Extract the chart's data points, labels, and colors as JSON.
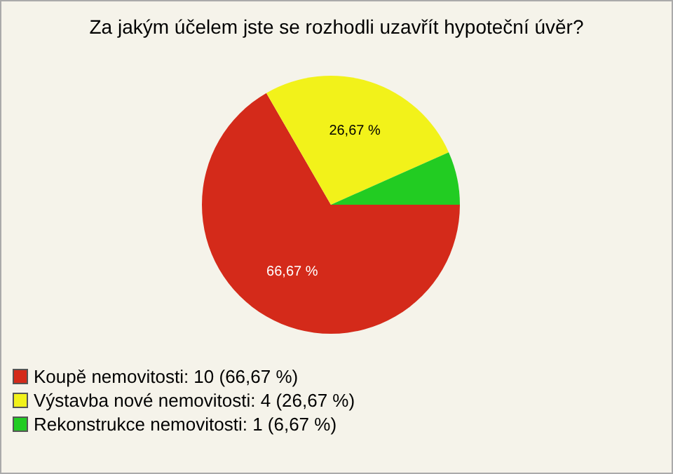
{
  "chart_data": {
    "type": "pie",
    "title": "Za jakým účelem jste se rozhodli uzavřít hypoteční úvěr?",
    "categories": [
      "Koupě nemovitosti: 10 (66,67 %)",
      "Výstavba nové nemovitosti: 4 (26,67 %)",
      "Rekonstrukce nemovitosti: 1 (6,67 %)"
    ],
    "values": [
      66.67,
      26.67,
      6.67
    ],
    "colors": [
      "#d42a1a",
      "#f2f21a",
      "#22cc22"
    ],
    "value_labels": [
      "66,67 %",
      "26,67 %",
      null
    ],
    "legend": "bottom left"
  }
}
